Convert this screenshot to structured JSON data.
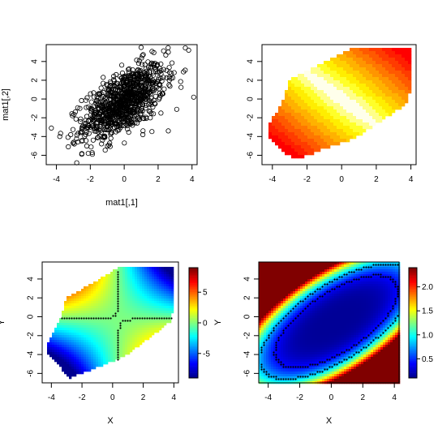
{
  "chart_data": [
    {
      "panel": "top-left",
      "type": "scatter",
      "xlabel": "mat1[,1]",
      "ylabel": "mat1[,2]",
      "xlim": [
        -4.6,
        4.3
      ],
      "ylim": [
        -7.0,
        5.8
      ],
      "xticks": [
        -4,
        -2,
        0,
        2,
        4
      ],
      "yticks": [
        -6,
        -4,
        -2,
        0,
        2,
        4
      ],
      "marker": "open circle",
      "n_points": 1000,
      "x_mean": 0.0,
      "x_sd": 1.2,
      "y_mean": -0.3,
      "y_sd": 2.0,
      "correlation": 0.6,
      "highlighted_points": [
        {
          "x": -4.3,
          "y": -3.1
        },
        {
          "x": -3.3,
          "y": -5.1
        },
        {
          "x": -2.8,
          "y": -6.8
        },
        {
          "x": -3.8,
          "y": -4.0
        },
        {
          "x": 3.8,
          "y": 5.2
        },
        {
          "x": 4.1,
          "y": 0.2
        },
        {
          "x": 1.0,
          "y": 5.5
        },
        {
          "x": 2.6,
          "y": 5.0
        },
        {
          "x": 2.6,
          "y": -3.4
        },
        {
          "x": 3.1,
          "y": -1.1
        }
      ]
    },
    {
      "panel": "top-right",
      "type": "heatmap",
      "xlabel": "",
      "ylabel": "",
      "xlim": [
        -4.6,
        4.3
      ],
      "ylim": [
        -7.0,
        5.8
      ],
      "xticks": [
        -4,
        -2,
        0,
        2,
        4
      ],
      "yticks": [
        -6,
        -4,
        -2,
        0,
        2,
        4
      ],
      "palette": "heat (red to yellow to white)",
      "legend": false,
      "region_polygon": [
        [
          -4.3,
          -3.0
        ],
        [
          -4.3,
          -3.8
        ],
        [
          -2.8,
          -6.5
        ],
        [
          0.8,
          -4.2
        ],
        [
          3.8,
          -0.5
        ],
        [
          4.0,
          1.0
        ],
        [
          4.0,
          5.3
        ],
        [
          0.5,
          5.3
        ],
        [
          -3.0,
          2.0
        ],
        [
          -3.5,
          -0.5
        ]
      ],
      "field": "low values (red) toward corners (-4,-4) and (4,4), high values (white) along the ridge from upper-left to lower-right"
    },
    {
      "panel": "bottom-left",
      "type": "heatmap",
      "xlabel": "X",
      "ylabel": "Y",
      "xlim": [
        -4.6,
        4.3
      ],
      "ylim": [
        -7.0,
        5.8
      ],
      "xticks": [
        -4,
        -2,
        0,
        2,
        4
      ],
      "yticks": [
        -6,
        -4,
        -2,
        0,
        2,
        4
      ],
      "palette": "jet (blue to cyan to yellow to red)",
      "colorbar": {
        "min": -9,
        "max": 9,
        "ticks": [
          -5,
          0,
          5
        ]
      },
      "contour_levels": [
        0
      ],
      "region_polygon": [
        [
          -4.3,
          -3.0
        ],
        [
          -4.3,
          -3.8
        ],
        [
          -2.8,
          -6.5
        ],
        [
          0.8,
          -4.2
        ],
        [
          3.8,
          -0.5
        ],
        [
          4.0,
          1.0
        ],
        [
          4.0,
          5.3
        ],
        [
          0.5,
          5.3
        ],
        [
          -3.0,
          2.0
        ],
        [
          -3.5,
          -0.5
        ]
      ],
      "field": "saddle: positive (red) toward upper-left and lower-right, negative (blue) toward upper-right and lower-left"
    },
    {
      "panel": "bottom-right",
      "type": "heatmap",
      "xlabel": "X",
      "ylabel": "Y",
      "xlim": [
        -4.6,
        4.3
      ],
      "ylim": [
        -7.0,
        5.8
      ],
      "xticks": [
        -4,
        -2,
        0,
        2,
        4
      ],
      "yticks": [
        -6,
        -4,
        -2,
        0,
        2,
        4
      ],
      "palette": "jet (blue to cyan to yellow to red)",
      "colorbar": {
        "min": 0.1,
        "max": 2.4,
        "ticks": [
          0.5,
          1.0,
          1.5,
          2.0
        ]
      },
      "colorbar_tick_labels": [
        "0.5",
        "1.0",
        "1.5",
        "2.0"
      ],
      "contour_levels": [
        0.4,
        0.8
      ],
      "field": "low (blue) over the central ellipse, rising to red at the upper-left and lower-right corners"
    }
  ]
}
